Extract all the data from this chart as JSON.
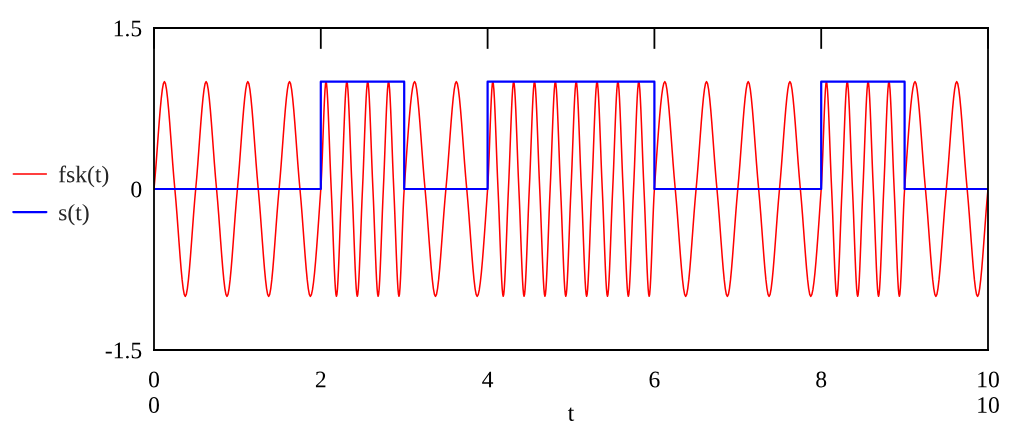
{
  "chart_data": {
    "type": "line",
    "xlabel": "t",
    "xlim": [
      0,
      10
    ],
    "ylim": [
      -1.5,
      1.5
    ],
    "xticks": [
      {
        "value": 0,
        "label": "0\n0"
      },
      2,
      4,
      6,
      8,
      {
        "value": 10,
        "label": "10\n10"
      }
    ],
    "yticks": [
      -1.5,
      0,
      1.5
    ],
    "legend": "left",
    "series": [
      {
        "name": "fsk(t)",
        "color": "#ff0000",
        "x": [
          0,
          0.125,
          0.25,
          0.375,
          0.5,
          0.625,
          0.75,
          0.875,
          1,
          1.125,
          1.25,
          1.375,
          1.5,
          1.625,
          1.75,
          1.875,
          2,
          2.0625,
          2.125,
          2.1875,
          2.25,
          2.3125,
          2.375,
          2.4375,
          2.5,
          2.5625,
          2.625,
          2.6875,
          2.75,
          2.8125,
          2.875,
          2.9375,
          3,
          3.125,
          3.25,
          3.375,
          3.5,
          3.625,
          3.75,
          3.875,
          4,
          4.0625,
          4.125,
          4.1875,
          4.25,
          4.3125,
          4.375,
          4.4375,
          4.5,
          4.5625,
          4.625,
          4.6875,
          4.75,
          4.8125,
          4.875,
          4.9375,
          5,
          5.0625,
          5.125,
          5.1875,
          5.25,
          5.3125,
          5.375,
          5.4375,
          5.5,
          5.5625,
          5.625,
          5.6875,
          5.75,
          5.8125,
          5.875,
          5.9375,
          6,
          6.125,
          6.25,
          6.375,
          6.5,
          6.625,
          6.75,
          6.875,
          7,
          7.125,
          7.25,
          7.375,
          7.5,
          7.625,
          7.75,
          7.875,
          8,
          8.0625,
          8.125,
          8.1875,
          8.25,
          8.3125,
          8.375,
          8.4375,
          8.5,
          8.5625,
          8.625,
          8.6875,
          8.75,
          8.8125,
          8.875,
          8.9375,
          9,
          9.125,
          9.25,
          9.375,
          9.5,
          9.625,
          9.75,
          9.875,
          10
        ],
        "values": [
          0,
          1,
          0,
          -1,
          0,
          1,
          0,
          -1,
          0,
          1,
          0,
          -1,
          0,
          1,
          0,
          -1,
          0,
          1,
          0,
          -1,
          0,
          1,
          0,
          -1,
          0,
          1,
          0,
          -1,
          0,
          1,
          0,
          -1,
          0,
          1,
          0,
          -1,
          0,
          1,
          0,
          -1,
          0,
          1,
          0,
          -1,
          0,
          1,
          0,
          -1,
          0,
          1,
          0,
          -1,
          0,
          1,
          0,
          -1,
          0,
          1,
          0,
          -1,
          0,
          1,
          0,
          -1,
          0,
          1,
          0,
          -1,
          0,
          1,
          0,
          -1,
          0,
          1,
          0,
          -1,
          0,
          1,
          0,
          -1,
          0,
          1,
          0,
          -1,
          0,
          1,
          0,
          -1,
          0,
          1,
          0,
          -1,
          0,
          1,
          0,
          -1,
          0,
          1,
          0,
          -1,
          0,
          1,
          0,
          -1,
          0,
          1,
          0,
          -1,
          0,
          1,
          0,
          -1,
          0
        ]
      },
      {
        "name": "s(t)",
        "type": "step",
        "color": "#0000ff",
        "x": [
          0,
          2,
          3,
          4,
          6,
          8,
          9,
          10
        ],
        "values": [
          0,
          1,
          0,
          1,
          0,
          1,
          0,
          0
        ]
      }
    ]
  }
}
